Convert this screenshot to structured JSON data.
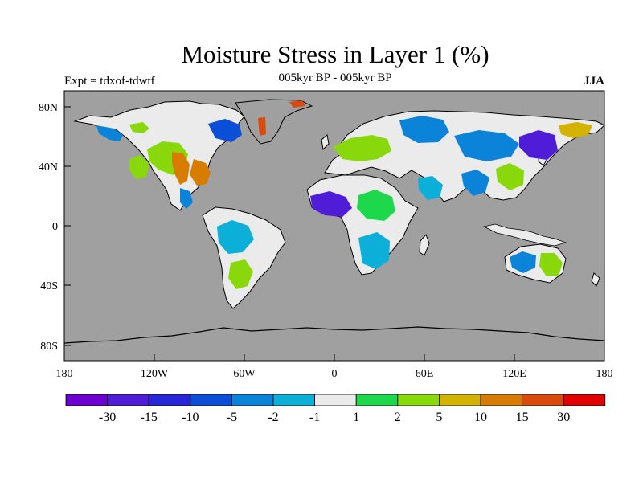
{
  "header": {
    "title": "Moisture Stress in Layer 1 (%)",
    "subtitle": "005kyr BP - 005kyr BP",
    "left_label": "Expt = tdxof-tdwtf",
    "right_label": "JJA"
  },
  "map": {
    "background_color": "#a0a0a0",
    "y_ticks": [
      "80N",
      "40N",
      "0",
      "40S",
      "80S"
    ],
    "x_ticks": [
      "180",
      "120W",
      "60W",
      "0",
      "60E",
      "120E",
      "180"
    ]
  },
  "colorbar": {
    "colors": [
      "#6d00d0",
      "#4f1cd8",
      "#2727d8",
      "#0b4fd8",
      "#0b83d8",
      "#0bafd8",
      "#ebebeb",
      "#1ed84b",
      "#88d80b",
      "#d4b300",
      "#d87c00",
      "#d84b0b",
      "#e00000"
    ],
    "labels": [
      "-30",
      "-15",
      "-10",
      "-5",
      "-2",
      "-1",
      "1",
      "2",
      "5",
      "10",
      "15",
      "30"
    ]
  }
}
